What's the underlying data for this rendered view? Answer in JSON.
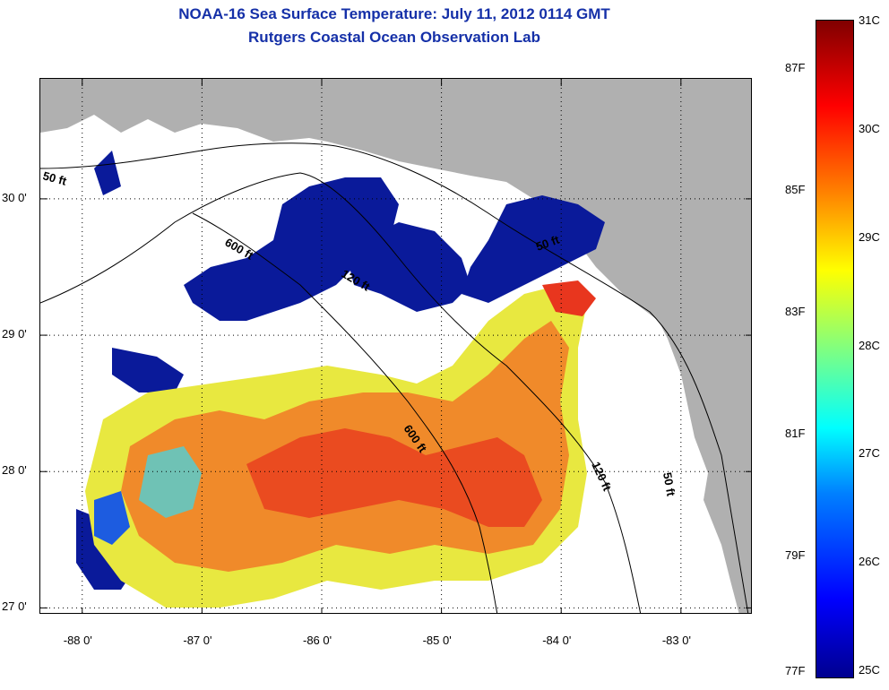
{
  "header": {
    "title": "NOAA-16 Sea Surface Temperature:  July 11, 2012 0114 GMT",
    "subtitle": "Rutgers Coastal Ocean Observation Lab"
  },
  "map": {
    "lon_range": [
      -88.35,
      -82.4
    ],
    "lat_range": [
      26.95,
      30.88
    ],
    "lon_ticks": [
      {
        "value": -88,
        "label": "-88 0'"
      },
      {
        "value": -87,
        "label": "-87 0'"
      },
      {
        "value": -86,
        "label": "-86 0'"
      },
      {
        "value": -85,
        "label": "-85 0'"
      },
      {
        "value": -84,
        "label": "-84 0'"
      },
      {
        "value": -83,
        "label": "-83 0'"
      }
    ],
    "lat_ticks": [
      {
        "value": 30,
        "label": "30 0'"
      },
      {
        "value": 29,
        "label": "29 0'"
      },
      {
        "value": 28,
        "label": "28 0'"
      },
      {
        "value": 27,
        "label": "27 0'"
      }
    ],
    "depth_labels": [
      "50 ft",
      "600 ft",
      "120 ft",
      "50 ft",
      "600 ft",
      "120 ft",
      "50 ft"
    ],
    "colors": {
      "land": "#b0b0b0",
      "water_no_data": "#ffffff",
      "cloud": "#0a1a9a",
      "cool": "#1d5ce0",
      "teal": "#4fd0d8",
      "yellow": "#e8e840",
      "orange": "#f08a2a",
      "red": "#e8361e"
    }
  },
  "colorbar": {
    "celsius_labels": [
      "31C",
      "30C",
      "29C",
      "28C",
      "27C",
      "26C",
      "25C"
    ],
    "fahrenheit_labels": [
      "87F",
      "85F",
      "83F",
      "81F",
      "79F",
      "77F"
    ]
  }
}
